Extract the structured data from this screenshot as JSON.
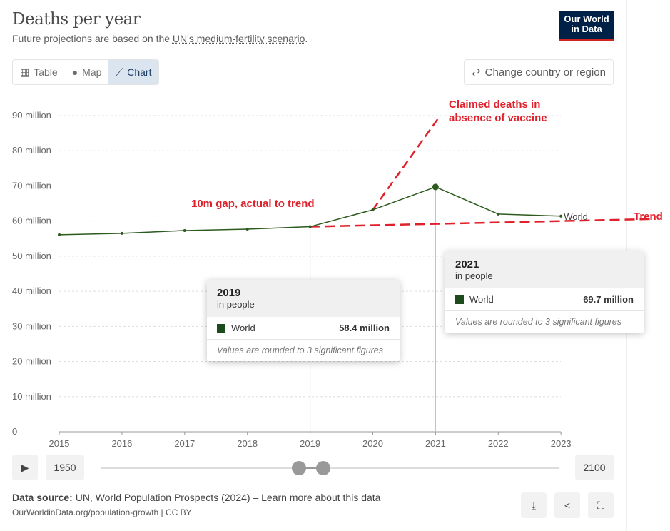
{
  "header": {
    "title": "Deaths per year",
    "subtitle_pre": "Future projections are based on the ",
    "subtitle_link": "UN's medium-fertility scenario",
    "subtitle_post": ".",
    "logo": "Our World in Data"
  },
  "tabs": [
    {
      "label": "Table",
      "icon": "table-icon"
    },
    {
      "label": "Map",
      "icon": "globe-icon"
    },
    {
      "label": "Chart",
      "icon": "line-chart-icon",
      "active": true
    }
  ],
  "change_country_label": "Change country or region",
  "chart_data": {
    "type": "line",
    "title": "Deaths per year",
    "x": [
      2015,
      2016,
      2017,
      2018,
      2019,
      2020,
      2021,
      2022,
      2023
    ],
    "series": [
      {
        "name": "World",
        "color": "#2d5a1e",
        "values": [
          56.1,
          56.5,
          57.3,
          57.7,
          58.4,
          63.2,
          69.7,
          62.0,
          61.4
        ]
      }
    ],
    "yticks": [
      "0",
      "10 million",
      "20 million",
      "30 million",
      "40 million",
      "50 million",
      "60 million",
      "70 million",
      "80 million",
      "90 million"
    ],
    "ylim": [
      0,
      90
    ],
    "xlabel": "",
    "ylabel": "",
    "annotations": {
      "trend_label": "Trend",
      "trend_line": [
        [
          2019,
          58.4
        ],
        [
          2024.5,
          60.6
        ]
      ],
      "vaccine_label_1": "Claimed deaths in",
      "vaccine_label_2": "absence of vaccine",
      "vaccine_line": [
        [
          2020,
          63.2
        ],
        [
          2021.05,
          89.4
        ]
      ],
      "gap_label": "10m gap, actual to trend",
      "annotation_color": "#e0202a"
    }
  },
  "tooltips": [
    {
      "year": "2019",
      "unit": "in people",
      "series": "World",
      "value": "58.4 million",
      "note": "Values are rounded to 3 significant figures"
    },
    {
      "year": "2021",
      "unit": "in people",
      "series": "World",
      "value": "69.7 million",
      "note": "Values are rounded to 3 significant figures"
    }
  ],
  "timeline": {
    "start": "1950",
    "end": "2100"
  },
  "footer": {
    "source_label": "Data source:",
    "source": " UN, World Population Prospects (2024) – ",
    "learn_more": "Learn more about this data",
    "url": "OurWorldinData.org/population-growth | CC BY"
  }
}
